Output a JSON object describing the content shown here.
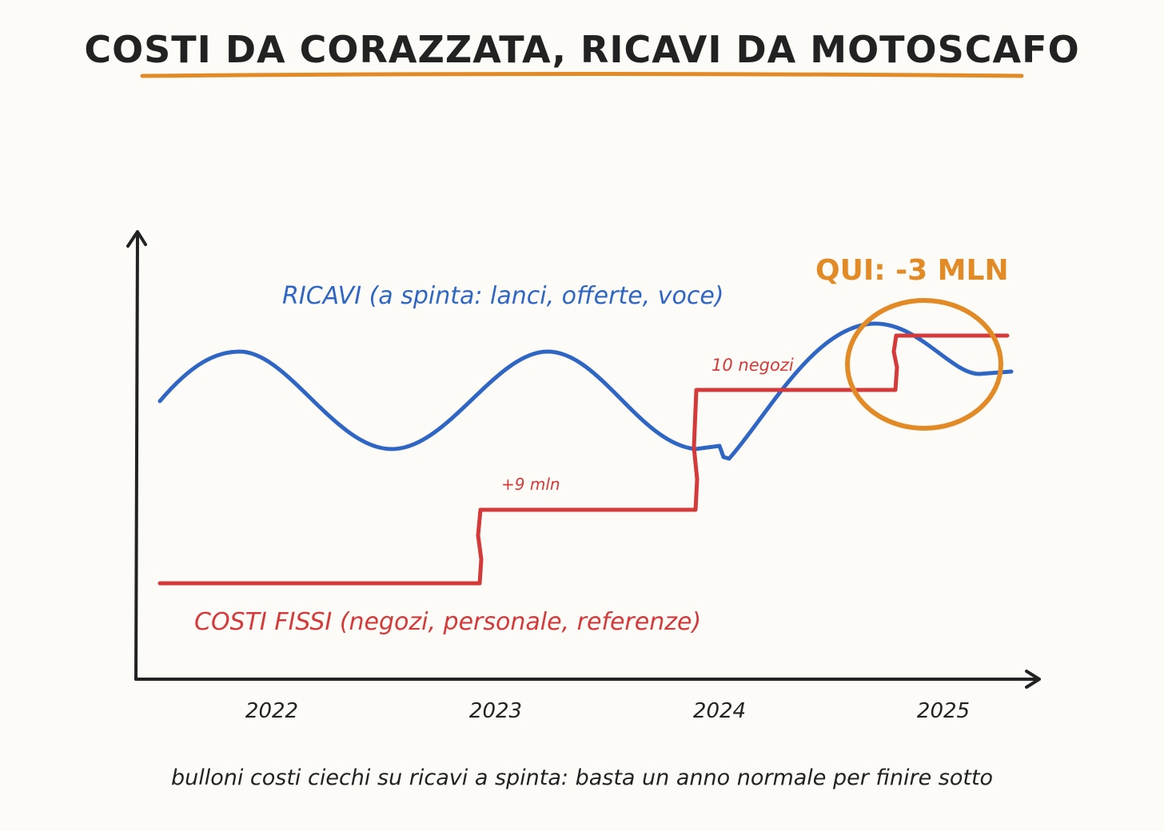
{
  "header": {
    "title": "COSTI DA CORAZZATA, RICAVI DA MOTOSCAFO"
  },
  "annotations": {
    "revenue": "RICAVI (a spinta: lanci, offerte, voce)",
    "costs": "COSTI FISSI (negozi, personale, referenze)",
    "step_one": "+9 mln",
    "step_two": "10 negozi",
    "highlight": "QUI: -3 MLN"
  },
  "x_labels": [
    "2022",
    "2023",
    "2024",
    "2025"
  ],
  "caption": "bulloni costi ciechi su ricavi a spinta: basta un anno normale per finire sotto"
}
